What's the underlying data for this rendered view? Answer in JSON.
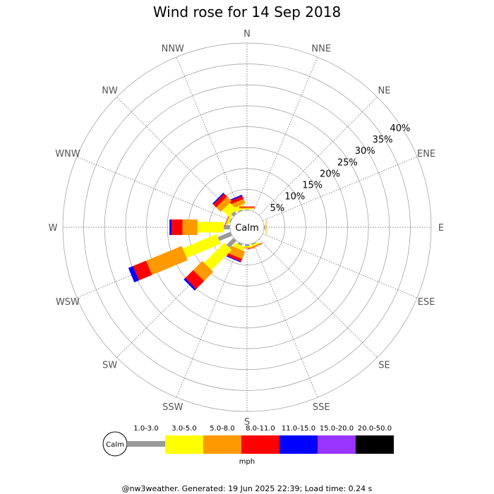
{
  "chart_data": {
    "type": "wind-rose",
    "title": "Wind rose for 14 Sep 2018",
    "directions": [
      "N",
      "NNE",
      "NE",
      "ENE",
      "E",
      "ESE",
      "SE",
      "SSE",
      "S",
      "SSW",
      "SW",
      "WSW",
      "W",
      "WNW",
      "NW",
      "NNW"
    ],
    "radial_ticks": [
      "5%",
      "10%",
      "15%",
      "20%",
      "25%",
      "30%",
      "35%",
      "40%"
    ],
    "radial_max_percent": 40,
    "calm_label": "Calm",
    "unit_label": "mph",
    "speed_bins": [
      {
        "label": "1.0-3.0",
        "color": "#999999"
      },
      {
        "label": "3.0-5.0",
        "color": "#ffff00"
      },
      {
        "label": "5.0-8.0",
        "color": "#ff9900"
      },
      {
        "label": "8.0-11.0",
        "color": "#ff0000"
      },
      {
        "label": "11.0-15.0",
        "color": "#0000ff"
      },
      {
        "label": "15.0-20.0",
        "color": "#9933ff"
      },
      {
        "label": "20.0-50.0",
        "color": "#000000"
      }
    ],
    "series": [
      {
        "direction": "NNW",
        "cumulative_percent": [
          0.3,
          1.4,
          2.5,
          3.3,
          3.6,
          3.6,
          3.6
        ]
      },
      {
        "direction": "N",
        "cumulative_percent": [
          0.2,
          0.4,
          0.7,
          0.9,
          0.9,
          0.9,
          0.9
        ]
      },
      {
        "direction": "E",
        "cumulative_percent": [
          0.3,
          0.5,
          0.6,
          0.6,
          0.6,
          0.6,
          0.6
        ]
      },
      {
        "direction": "SSE",
        "cumulative_percent": [
          0.3,
          0.7,
          0.9,
          1.0,
          1.0,
          1.0,
          1.0
        ]
      },
      {
        "direction": "S",
        "cumulative_percent": [
          0.5,
          0.8,
          0.9,
          1.0,
          1.0,
          1.0,
          1.0
        ]
      },
      {
        "direction": "SSW",
        "cumulative_percent": [
          0.5,
          1.5,
          3.4,
          4.1,
          4.3,
          4.3,
          4.3
        ]
      },
      {
        "direction": "SW",
        "cumulative_percent": [
          2.4,
          9.2,
          12.3,
          15.0,
          15.5,
          15.5,
          15.5
        ]
      },
      {
        "direction": "WSW",
        "cumulative_percent": [
          3.3,
          12.1,
          21.3,
          24.7,
          25.9,
          25.9,
          25.9
        ]
      },
      {
        "direction": "W",
        "cumulative_percent": [
          1.5,
          7.8,
          11.4,
          14.0,
          14.5,
          14.5,
          14.5
        ]
      },
      {
        "direction": "WNW",
        "cumulative_percent": [
          0.3,
          0.8,
          1.0,
          1.1,
          1.1,
          1.1,
          1.1
        ]
      },
      {
        "direction": "NW",
        "cumulative_percent": [
          0.8,
          3.0,
          4.5,
          5.5,
          5.8,
          5.8,
          5.8
        ]
      }
    ]
  },
  "footer_text": "@nw3weather. Generated: 19 Jun 2025 22:39; Load time: 0.24 s"
}
